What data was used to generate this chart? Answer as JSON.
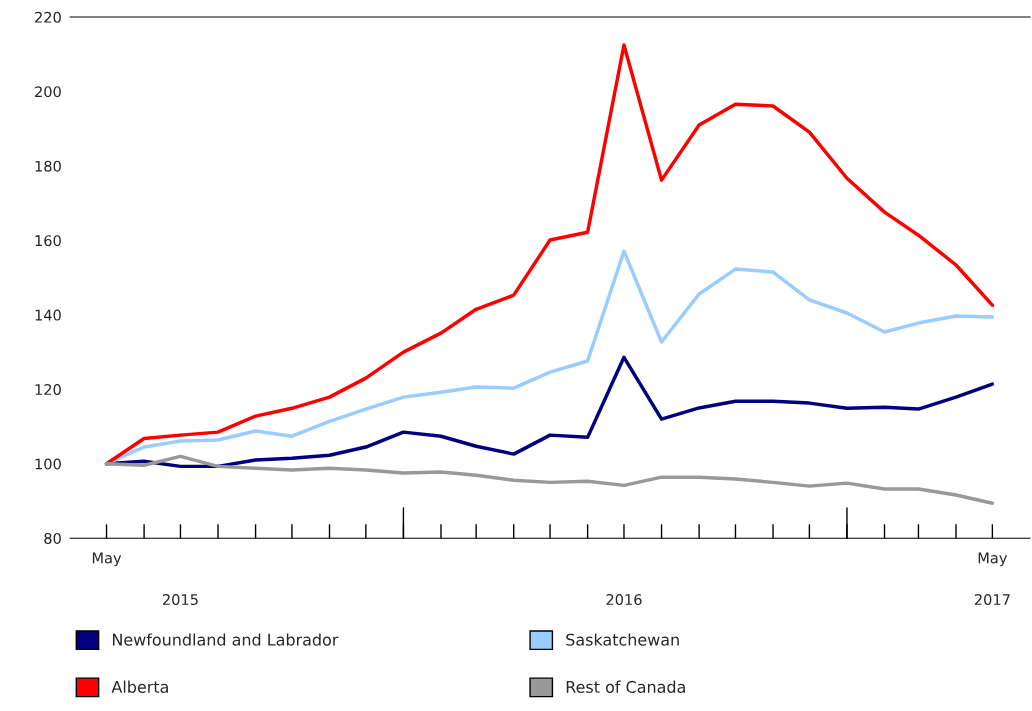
{
  "chart_data": {
    "type": "line",
    "x": [
      "2015-05",
      "2015-06",
      "2015-07",
      "2015-08",
      "2015-09",
      "2015-10",
      "2015-11",
      "2015-12",
      "2016-01",
      "2016-02",
      "2016-03",
      "2016-04",
      "2016-05",
      "2016-06",
      "2016-07",
      "2016-08",
      "2016-09",
      "2016-10",
      "2016-11",
      "2016-12",
      "2017-01",
      "2017-02",
      "2017-03",
      "2017-04",
      "2017-05"
    ],
    "series": [
      {
        "name": "Newfoundland and Labrador",
        "color": "#000080",
        "values": [
          100,
          100.7,
          99.3,
          99.3,
          101.0,
          101.5,
          102.3,
          104.5,
          108.5,
          107.4,
          104.7,
          102.6,
          107.7,
          107.1,
          128.6,
          112.0,
          115.0,
          116.8,
          116.8,
          116.3,
          114.9,
          115.2,
          114.7,
          117.9,
          121.4
        ]
      },
      {
        "name": "Saskatchewan",
        "color": "#99ccff",
        "values": [
          100,
          104.5,
          106.1,
          106.4,
          108.8,
          107.4,
          111.4,
          114.7,
          117.9,
          119.2,
          120.6,
          120.3,
          124.6,
          127.6,
          157.1,
          132.7,
          145.6,
          152.3,
          151.5,
          144.0,
          140.5,
          135.4,
          137.8,
          139.7,
          139.4
        ]
      },
      {
        "name": "Alberta",
        "color": "#ff0000",
        "values": [
          100,
          106.8,
          107.7,
          108.5,
          112.8,
          114.9,
          117.9,
          123.0,
          130.0,
          135.1,
          141.5,
          145.3,
          160.1,
          162.2,
          212.5,
          176.2,
          191.0,
          196.6,
          196.1,
          189.1,
          176.7,
          167.6,
          161.4,
          153.4,
          142.6
        ]
      },
      {
        "name": "Rest of Canada",
        "color": "#999999",
        "values": [
          100,
          99.6,
          102.0,
          99.3,
          98.8,
          98.3,
          98.8,
          98.3,
          97.5,
          97.8,
          96.9,
          95.6,
          95.0,
          95.3,
          94.2,
          96.4,
          96.4,
          95.9,
          95.0,
          94.0,
          94.8,
          93.2,
          93.2,
          91.6,
          89.4
        ]
      }
    ],
    "xlim": [
      "2015-04",
      "2017-06"
    ],
    "xticks": [
      {
        "value": "2015-05",
        "label": "May"
      },
      {
        "value": "2015-06",
        "label": null
      },
      {
        "value": "2015-07",
        "label": null
      },
      {
        "value": "2015-08",
        "label": null
      },
      {
        "value": "2015-09",
        "label": null
      },
      {
        "value": "2015-10",
        "label": null
      },
      {
        "value": "2015-11",
        "label": null
      },
      {
        "value": "2015-12",
        "label": null
      },
      {
        "value": "2016-01",
        "label": null
      },
      {
        "value": "2016-02",
        "label": null
      },
      {
        "value": "2016-03",
        "label": null
      },
      {
        "value": "2016-04",
        "label": null
      },
      {
        "value": "2016-05",
        "label": null
      },
      {
        "value": "2016-06",
        "label": null
      },
      {
        "value": "2016-07",
        "label": null
      },
      {
        "value": "2016-08",
        "label": null
      },
      {
        "value": "2016-09",
        "label": null
      },
      {
        "value": "2016-10",
        "label": null
      },
      {
        "value": "2016-11",
        "label": null
      },
      {
        "value": "2016-12",
        "label": null
      },
      {
        "value": "2017-01",
        "label": null
      },
      {
        "value": "2017-02",
        "label": null
      },
      {
        "value": "2017-03",
        "label": null
      },
      {
        "value": "2017-04",
        "label": null
      },
      {
        "value": "2017-05",
        "label": "May"
      }
    ],
    "annotations": [
      "2015",
      "2016",
      "2017"
    ],
    "ylim": [
      80,
      220
    ],
    "yticks": [
      80,
      100,
      120,
      140,
      160,
      180,
      200,
      220
    ],
    "grid": false,
    "legend": "bottom",
    "marker": "none",
    "line_style": "solid"
  }
}
